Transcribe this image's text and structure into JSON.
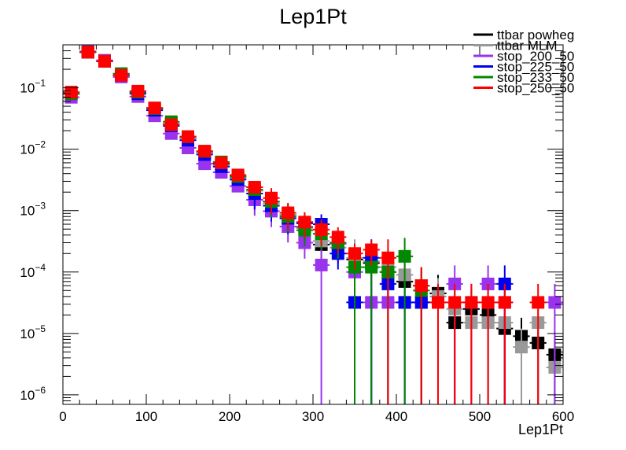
{
  "chart_data": {
    "type": "scatter",
    "title": "Lep1Pt",
    "xlabel": "Lep1Pt",
    "ylabel": "",
    "xlim": [
      0,
      600
    ],
    "ylim": [
      7e-07,
      0.5
    ],
    "y_scale": "log",
    "grid": false,
    "legend_position": "top-right",
    "x_ticks": [
      0,
      100,
      200,
      300,
      400,
      500,
      600
    ],
    "x_tick_labels": [
      "0",
      "100",
      "200",
      "300",
      "400",
      "500",
      "600"
    ],
    "y_ticks": [
      1e-06,
      1e-05,
      0.0001,
      0.001,
      0.01,
      0.1
    ],
    "y_tick_labels": [
      {
        "base": "10",
        "exp": "−6"
      },
      {
        "base": "10",
        "exp": "−5"
      },
      {
        "base": "10",
        "exp": "−4"
      },
      {
        "base": "10",
        "exp": "−3"
      },
      {
        "base": "10",
        "exp": "−2"
      },
      {
        "base": "10",
        "exp": "−1"
      }
    ],
    "series": [
      {
        "name": "ttbar powheg",
        "color": "#000000",
        "points": [
          [
            10,
            0.08
          ],
          [
            30,
            0.38
          ],
          [
            50,
            0.27
          ],
          [
            70,
            0.16
          ],
          [
            90,
            0.085
          ],
          [
            110,
            0.046
          ],
          [
            130,
            0.026
          ],
          [
            150,
            0.015
          ],
          [
            170,
            0.0088
          ],
          [
            190,
            0.0058
          ],
          [
            210,
            0.0035
          ],
          [
            230,
            0.0021
          ],
          [
            250,
            0.0014
          ],
          [
            270,
            0.00085
          ],
          [
            290,
            0.00054
          ],
          [
            310,
            0.00028
          ],
          [
            330,
            0.00029
          ],
          [
            350,
            0.00016
          ],
          [
            370,
            0.00014
          ],
          [
            390,
            0.0001
          ],
          [
            410,
            7e-05
          ],
          [
            430,
            6e-05
          ],
          [
            450,
            4.5e-05
          ],
          [
            470,
            1.5e-05
          ],
          [
            490,
            2.5e-05
          ],
          [
            510,
            2e-05
          ],
          [
            530,
            1.2e-05
          ],
          [
            550,
            9e-06
          ],
          [
            570,
            7e-06
          ],
          [
            590,
            4.5e-06
          ]
        ]
      },
      {
        "name": "ttbar MLM",
        "color": "#999999",
        "points": [
          [
            10,
            0.08
          ],
          [
            30,
            0.38
          ],
          [
            50,
            0.27
          ],
          [
            70,
            0.16
          ],
          [
            90,
            0.085
          ],
          [
            110,
            0.045
          ],
          [
            130,
            0.026
          ],
          [
            150,
            0.015
          ],
          [
            170,
            0.0088
          ],
          [
            190,
            0.0055
          ],
          [
            210,
            0.0034
          ],
          [
            230,
            0.0021
          ],
          [
            250,
            0.0013
          ],
          [
            270,
            0.00085
          ],
          [
            290,
            0.00052
          ],
          [
            310,
            0.00032
          ],
          [
            330,
            0.00025
          ],
          [
            350,
            0.00017
          ],
          [
            370,
            0.00015
          ],
          [
            390,
            0.00012
          ],
          [
            410,
            9e-05
          ],
          [
            430,
            6e-05
          ],
          [
            450,
            4e-05
          ],
          [
            470,
            2.5e-05
          ],
          [
            490,
            1.5e-05
          ],
          [
            510,
            1.5e-05
          ],
          [
            530,
            1.5e-05
          ],
          [
            550,
            6e-06
          ],
          [
            570,
            1.5e-05
          ],
          [
            590,
            2.8e-06
          ]
        ]
      },
      {
        "name": "stop_200_50",
        "color": "#9933ee",
        "points": [
          [
            10,
            0.07
          ],
          [
            30,
            0.39
          ],
          [
            50,
            0.28
          ],
          [
            70,
            0.15
          ],
          [
            90,
            0.072
          ],
          [
            110,
            0.035
          ],
          [
            130,
            0.018
          ],
          [
            150,
            0.0105
          ],
          [
            170,
            0.0058
          ],
          [
            190,
            0.0042
          ],
          [
            210,
            0.0025
          ],
          [
            230,
            0.0015
          ],
          [
            250,
            0.00098
          ],
          [
            270,
            0.00055
          ],
          [
            290,
            0.0003
          ],
          [
            310,
            0.00013
          ],
          [
            330,
            0.00029
          ],
          [
            350,
            0.0001
          ],
          [
            370,
            3.2e-05
          ],
          [
            390,
            3.2e-05
          ],
          [
            410,
            3.2e-05
          ],
          [
            430,
            3.2e-05
          ],
          [
            450,
            3.2e-05
          ],
          [
            470,
            6.4e-05
          ],
          [
            490,
            3.2e-05
          ],
          [
            510,
            6.4e-05
          ],
          [
            530,
            3.2e-05
          ],
          [
            590,
            3.2e-05
          ]
        ]
      },
      {
        "name": "stop_225_50",
        "color": "#0000ee",
        "points": [
          [
            10,
            0.08
          ],
          [
            30,
            0.38
          ],
          [
            50,
            0.27
          ],
          [
            70,
            0.16
          ],
          [
            90,
            0.08
          ],
          [
            110,
            0.043
          ],
          [
            130,
            0.024
          ],
          [
            150,
            0.014
          ],
          [
            170,
            0.0082
          ],
          [
            190,
            0.0052
          ],
          [
            210,
            0.0032
          ],
          [
            230,
            0.0019
          ],
          [
            250,
            0.0012
          ],
          [
            270,
            0.00075
          ],
          [
            290,
            0.00062
          ],
          [
            310,
            0.0006
          ],
          [
            330,
            0.0002
          ],
          [
            350,
            3.2e-05
          ],
          [
            370,
            0.00017
          ],
          [
            390,
            6.4e-05
          ],
          [
            410,
            3.2e-05
          ],
          [
            430,
            3.2e-05
          ],
          [
            530,
            6.4e-05
          ]
        ]
      },
      {
        "name": "stop_233_50",
        "color": "#008800",
        "points": [
          [
            10,
            0.08
          ],
          [
            30,
            0.38
          ],
          [
            50,
            0.27
          ],
          [
            70,
            0.17
          ],
          [
            90,
            0.085
          ],
          [
            110,
            0.046
          ],
          [
            130,
            0.028
          ],
          [
            150,
            0.016
          ],
          [
            170,
            0.0092
          ],
          [
            190,
            0.0062
          ],
          [
            210,
            0.0036
          ],
          [
            230,
            0.0022
          ],
          [
            250,
            0.0014
          ],
          [
            270,
            0.0008
          ],
          [
            290,
            0.00048
          ],
          [
            310,
            0.00042
          ],
          [
            330,
            0.0003
          ],
          [
            350,
            0.00012
          ],
          [
            370,
            0.00012
          ],
          [
            390,
            0.0001
          ],
          [
            410,
            0.00018
          ],
          [
            430,
            5e-05
          ]
        ]
      },
      {
        "name": "stop_250_50",
        "color": "#ff0000",
        "points": [
          [
            10,
            0.085
          ],
          [
            30,
            0.38
          ],
          [
            50,
            0.27
          ],
          [
            70,
            0.16
          ],
          [
            90,
            0.088
          ],
          [
            110,
            0.047
          ],
          [
            130,
            0.025
          ],
          [
            150,
            0.016
          ],
          [
            170,
            0.0093
          ],
          [
            190,
            0.006
          ],
          [
            210,
            0.0038
          ],
          [
            230,
            0.0024
          ],
          [
            250,
            0.0016
          ],
          [
            270,
            0.00092
          ],
          [
            290,
            0.00065
          ],
          [
            310,
            0.00049
          ],
          [
            330,
            0.00037
          ],
          [
            350,
            0.0002
          ],
          [
            370,
            0.00023
          ],
          [
            390,
            0.00017
          ],
          [
            430,
            6e-05
          ],
          [
            450,
            3.2e-05
          ],
          [
            470,
            3.2e-05
          ],
          [
            490,
            3.2e-05
          ],
          [
            510,
            3.2e-05
          ],
          [
            530,
            3.2e-05
          ],
          [
            570,
            3.2e-05
          ]
        ]
      }
    ]
  }
}
